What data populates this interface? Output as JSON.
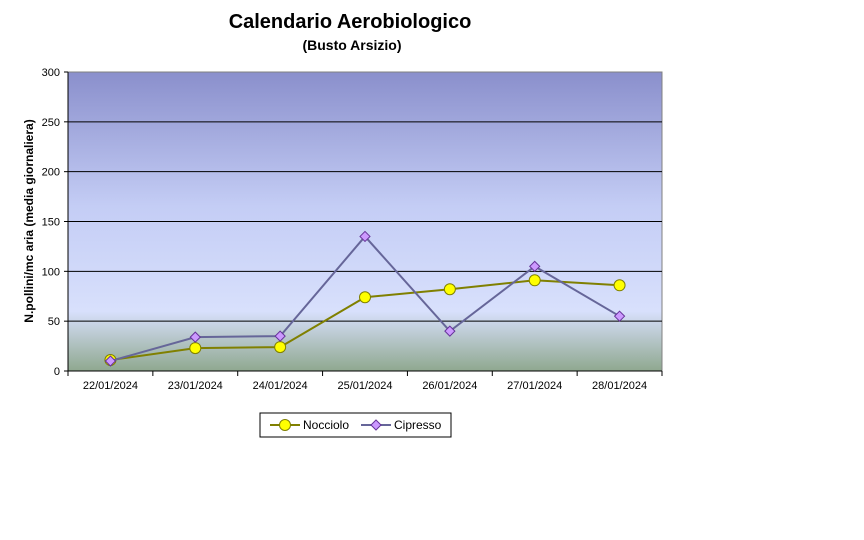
{
  "chart_data": {
    "type": "line",
    "title": "Calendario Aerobiologico",
    "subtitle": "(Busto Arsizio)",
    "xlabel": "",
    "ylabel": "N.pollini/mc aria (media giornaliera)",
    "ylim": [
      0,
      300
    ],
    "yticks": [
      "0",
      "50",
      "100",
      "150",
      "200",
      "250",
      "300"
    ],
    "grid": true,
    "legend_position": "bottom",
    "categories": [
      "22/01/2024",
      "23/01/2024",
      "24/01/2024",
      "25/01/2024",
      "26/01/2024",
      "27/01/2024",
      "28/01/2024"
    ],
    "series": [
      {
        "name": "Nocciolo",
        "values": [
          11,
          23,
          24,
          74,
          82,
          91,
          86
        ],
        "line_color": "#808000",
        "marker_color": "#ffff00",
        "marker": "circle"
      },
      {
        "name": "Cipresso",
        "values": [
          10,
          34,
          35,
          135,
          40,
          105,
          55
        ],
        "line_color": "#666699",
        "marker_color": "#cc99ff",
        "marker": "diamond"
      }
    ]
  }
}
